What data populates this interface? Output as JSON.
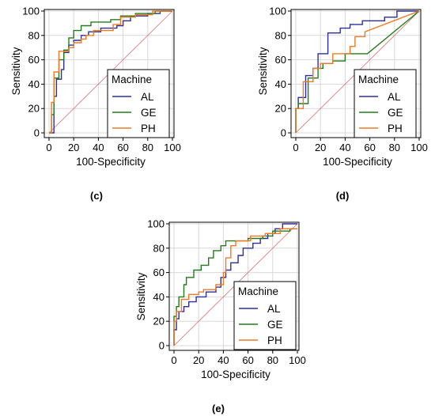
{
  "colors": {
    "AL": "#2b2f9e",
    "GE": "#237a1c",
    "PH": "#f07a22",
    "diagonal": "#e06b6b",
    "frame": "#000000",
    "grid": "#d9d9d9"
  },
  "chart_data": [
    {
      "type": "line",
      "panel_label": "(c)",
      "xlabel": "100-Specificity",
      "ylabel": "Sensitivity",
      "xlim": [
        0,
        100
      ],
      "ylim": [
        0,
        100
      ],
      "x_ticks": [
        "0",
        "20",
        "40",
        "60",
        "80",
        "100"
      ],
      "y_ticks": [
        "0",
        "20",
        "40",
        "60",
        "80",
        "100"
      ],
      "grid": true,
      "diagonal_reference": true,
      "legend": {
        "title": "Machine",
        "position": "bottom-right",
        "entries": [
          "AL",
          "GE",
          "PH"
        ]
      },
      "series": [
        {
          "name": "AL",
          "points": [
            [
              0,
              0
            ],
            [
              4,
              0
            ],
            [
              4,
              30
            ],
            [
              6,
              30
            ],
            [
              6,
              44
            ],
            [
              10,
              44
            ],
            [
              10,
              52
            ],
            [
              12,
              52
            ],
            [
              12,
              66
            ],
            [
              16,
              66
            ],
            [
              16,
              72
            ],
            [
              20,
              72
            ],
            [
              20,
              76
            ],
            [
              26,
              76
            ],
            [
              26,
              80
            ],
            [
              32,
              80
            ],
            [
              32,
              83
            ],
            [
              42,
              83
            ],
            [
              42,
              86
            ],
            [
              55,
              86
            ],
            [
              55,
              88
            ],
            [
              60,
              88
            ],
            [
              60,
              92
            ],
            [
              66,
              92
            ],
            [
              66,
              96
            ],
            [
              80,
              96
            ],
            [
              80,
              98
            ],
            [
              90,
              98
            ],
            [
              90,
              100
            ],
            [
              100,
              100
            ]
          ]
        },
        {
          "name": "GE",
          "points": [
            [
              0,
              0
            ],
            [
              2,
              0
            ],
            [
              2,
              15
            ],
            [
              4,
              15
            ],
            [
              4,
              45
            ],
            [
              8,
              45
            ],
            [
              8,
              60
            ],
            [
              12,
              60
            ],
            [
              12,
              68
            ],
            [
              16,
              68
            ],
            [
              16,
              78
            ],
            [
              20,
              78
            ],
            [
              20,
              84
            ],
            [
              26,
              84
            ],
            [
              26,
              88
            ],
            [
              34,
              88
            ],
            [
              34,
              91
            ],
            [
              50,
              91
            ],
            [
              50,
              93
            ],
            [
              58,
              93
            ],
            [
              58,
              96
            ],
            [
              70,
              96
            ],
            [
              70,
              98
            ],
            [
              86,
              98
            ],
            [
              86,
              100
            ],
            [
              100,
              100
            ]
          ]
        },
        {
          "name": "PH",
          "points": [
            [
              0,
              0
            ],
            [
              2,
              0
            ],
            [
              2,
              25
            ],
            [
              4,
              25
            ],
            [
              4,
              50
            ],
            [
              8,
              50
            ],
            [
              8,
              67
            ],
            [
              16,
              67
            ],
            [
              16,
              70
            ],
            [
              20,
              70
            ],
            [
              20,
              74
            ],
            [
              26,
              74
            ],
            [
              26,
              77
            ],
            [
              30,
              77
            ],
            [
              30,
              80
            ],
            [
              36,
              80
            ],
            [
              36,
              84
            ],
            [
              52,
              84
            ],
            [
              52,
              89
            ],
            [
              58,
              89
            ],
            [
              58,
              95
            ],
            [
              70,
              95
            ],
            [
              70,
              97
            ],
            [
              84,
              97
            ],
            [
              84,
              100
            ],
            [
              100,
              100
            ]
          ]
        }
      ]
    },
    {
      "type": "line",
      "panel_label": "(d)",
      "xlabel": "100-Specificity",
      "ylabel": "Sensitivity",
      "xlim": [
        0,
        100
      ],
      "ylim": [
        0,
        100
      ],
      "x_ticks": [
        "0",
        "20",
        "40",
        "60",
        "80",
        "100"
      ],
      "y_ticks": [
        "0",
        "20",
        "40",
        "60",
        "80",
        "100"
      ],
      "grid": true,
      "diagonal_reference": true,
      "legend": {
        "title": "Machine",
        "position": "bottom-right",
        "entries": [
          "AL",
          "GE",
          "PH"
        ]
      },
      "series": [
        {
          "name": "AL",
          "points": [
            [
              0,
              0
            ],
            [
              0,
              20
            ],
            [
              2,
              20
            ],
            [
              2,
              29
            ],
            [
              8,
              29
            ],
            [
              8,
              47
            ],
            [
              14,
              47
            ],
            [
              14,
              53
            ],
            [
              18,
              53
            ],
            [
              18,
              65
            ],
            [
              26,
              65
            ],
            [
              26,
              82
            ],
            [
              36,
              82
            ],
            [
              36,
              86
            ],
            [
              44,
              86
            ],
            [
              44,
              89
            ],
            [
              54,
              89
            ],
            [
              54,
              92
            ],
            [
              72,
              92
            ],
            [
              72,
              95
            ],
            [
              82,
              95
            ],
            [
              82,
              100
            ],
            [
              100,
              100
            ]
          ]
        },
        {
          "name": "GE",
          "points": [
            [
              0,
              0
            ],
            [
              0,
              20
            ],
            [
              2,
              20
            ],
            [
              2,
              24
            ],
            [
              10,
              24
            ],
            [
              10,
              45
            ],
            [
              18,
              45
            ],
            [
              18,
              53
            ],
            [
              22,
              53
            ],
            [
              22,
              57
            ],
            [
              30,
              57
            ],
            [
              30,
              59
            ],
            [
              40,
              59
            ],
            [
              40,
              65
            ],
            [
              58,
              65
            ],
            [
              100,
              100
            ]
          ]
        },
        {
          "name": "PH",
          "points": [
            [
              0,
              0
            ],
            [
              0,
              20
            ],
            [
              6,
              20
            ],
            [
              6,
              42
            ],
            [
              14,
              42
            ],
            [
              14,
              53
            ],
            [
              20,
              53
            ],
            [
              20,
              57
            ],
            [
              30,
              57
            ],
            [
              30,
              65
            ],
            [
              44,
              65
            ],
            [
              44,
              71
            ],
            [
              48,
              71
            ],
            [
              48,
              79
            ],
            [
              56,
              79
            ],
            [
              56,
              83
            ],
            [
              100,
              100
            ]
          ]
        }
      ]
    },
    {
      "type": "line",
      "panel_label": "(e)",
      "xlabel": "100-Specificity",
      "ylabel": "Sensitivity",
      "xlim": [
        0,
        100
      ],
      "ylim": [
        0,
        100
      ],
      "x_ticks": [
        "0",
        "20",
        "40",
        "60",
        "80",
        "100"
      ],
      "y_ticks": [
        "0",
        "20",
        "40",
        "60",
        "80",
        "100"
      ],
      "grid": true,
      "diagonal_reference": true,
      "legend": {
        "title": "Machine",
        "position": "bottom-right",
        "entries": [
          "AL",
          "GE",
          "PH"
        ]
      },
      "series": [
        {
          "name": "AL",
          "points": [
            [
              0,
              0
            ],
            [
              0,
              13
            ],
            [
              2,
              13
            ],
            [
              2,
              22
            ],
            [
              4,
              22
            ],
            [
              4,
              28
            ],
            [
              8,
              28
            ],
            [
              8,
              32
            ],
            [
              12,
              32
            ],
            [
              12,
              36
            ],
            [
              18,
              36
            ],
            [
              18,
              40
            ],
            [
              26,
              40
            ],
            [
              26,
              44
            ],
            [
              34,
              44
            ],
            [
              34,
              48
            ],
            [
              38,
              48
            ],
            [
              38,
              56
            ],
            [
              42,
              56
            ],
            [
              42,
              62
            ],
            [
              46,
              62
            ],
            [
              46,
              68
            ],
            [
              52,
              68
            ],
            [
              52,
              74
            ],
            [
              56,
              74
            ],
            [
              56,
              80
            ],
            [
              64,
              80
            ],
            [
              64,
              84
            ],
            [
              70,
              84
            ],
            [
              70,
              88
            ],
            [
              76,
              88
            ],
            [
              76,
              92
            ],
            [
              82,
              92
            ],
            [
              82,
              96
            ],
            [
              88,
              96
            ],
            [
              88,
              100
            ],
            [
              100,
              100
            ]
          ]
        },
        {
          "name": "GE",
          "points": [
            [
              0,
              0
            ],
            [
              0,
              24
            ],
            [
              2,
              24
            ],
            [
              2,
              32
            ],
            [
              4,
              32
            ],
            [
              4,
              40
            ],
            [
              8,
              40
            ],
            [
              8,
              50
            ],
            [
              10,
              50
            ],
            [
              10,
              56
            ],
            [
              16,
              56
            ],
            [
              16,
              62
            ],
            [
              22,
              62
            ],
            [
              22,
              66
            ],
            [
              28,
              66
            ],
            [
              28,
              72
            ],
            [
              32,
              72
            ],
            [
              32,
              78
            ],
            [
              38,
              78
            ],
            [
              38,
              82
            ],
            [
              42,
              82
            ],
            [
              42,
              86
            ],
            [
              60,
              86
            ],
            [
              60,
              88
            ],
            [
              72,
              88
            ],
            [
              72,
              90
            ],
            [
              80,
              90
            ],
            [
              80,
              94
            ],
            [
              94,
              94
            ],
            [
              94,
              96
            ],
            [
              100,
              96
            ]
          ]
        },
        {
          "name": "PH",
          "points": [
            [
              0,
              0
            ],
            [
              0,
              20
            ],
            [
              2,
              20
            ],
            [
              2,
              28
            ],
            [
              6,
              28
            ],
            [
              6,
              38
            ],
            [
              12,
              38
            ],
            [
              12,
              42
            ],
            [
              20,
              42
            ],
            [
              20,
              44
            ],
            [
              24,
              44
            ],
            [
              24,
              46
            ],
            [
              34,
              46
            ],
            [
              34,
              50
            ],
            [
              40,
              50
            ],
            [
              40,
              60
            ],
            [
              42,
              60
            ],
            [
              42,
              72
            ],
            [
              46,
              72
            ],
            [
              46,
              82
            ],
            [
              50,
              82
            ],
            [
              50,
              86
            ],
            [
              62,
              86
            ],
            [
              62,
              90
            ],
            [
              74,
              90
            ],
            [
              74,
              92
            ],
            [
              86,
              92
            ],
            [
              86,
              96
            ],
            [
              100,
              96
            ]
          ]
        }
      ]
    }
  ]
}
